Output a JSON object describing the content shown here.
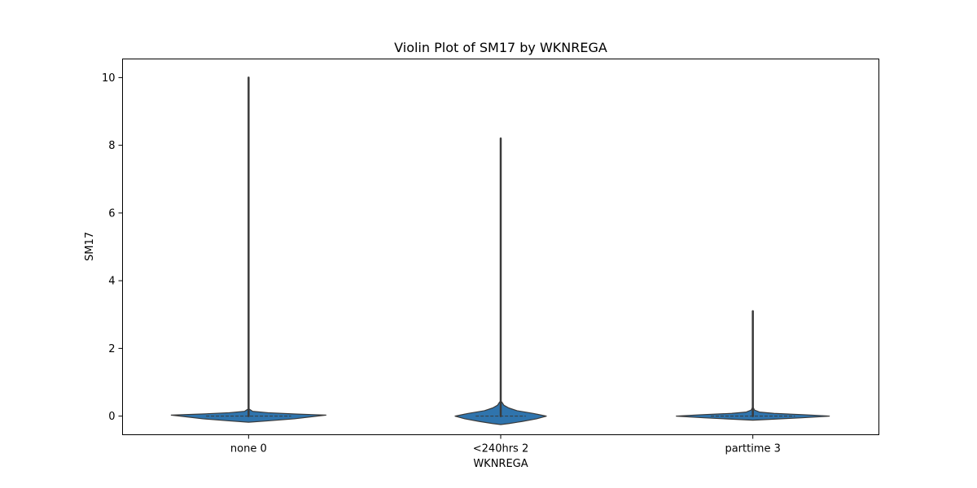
{
  "chart_data": {
    "type": "violin",
    "title": "Violin Plot of SM17 by WKNREGA",
    "xlabel": "WKNREGA",
    "ylabel": "SM17",
    "categories": [
      "none 0",
      "<240hrs 2",
      "parttime 3"
    ],
    "ylim": [
      -0.55,
      10.55
    ],
    "yticks": [
      0,
      2,
      4,
      6,
      8,
      10
    ],
    "ytick_labels": [
      "0",
      "2",
      "4",
      "6",
      "8",
      "10"
    ],
    "grid": false,
    "legend": "none",
    "colors": {
      "fill": "#2f74ad",
      "stroke": "#3a3a3a",
      "axes": "#000000"
    },
    "violins": [
      {
        "category": "none 0",
        "min": 0,
        "max": 10,
        "median": 0,
        "q1": 0,
        "q3": 0,
        "density": [
          {
            "y": -0.18,
            "w": 0.0
          },
          {
            "y": -0.14,
            "w": 0.12
          },
          {
            "y": -0.08,
            "w": 0.28
          },
          {
            "y": 0.0,
            "w": 0.42
          },
          {
            "y": 0.03,
            "w": 0.475
          },
          {
            "y": 0.06,
            "w": 0.3
          },
          {
            "y": 0.1,
            "w": 0.12
          },
          {
            "y": 0.14,
            "w": 0.025
          },
          {
            "y": 0.2,
            "w": 0.006
          }
        ]
      },
      {
        "category": "<240hrs 2",
        "min": 0,
        "max": 8.2,
        "median": 0,
        "q1": 0,
        "q3": 0,
        "density": [
          {
            "y": -0.25,
            "w": 0.0
          },
          {
            "y": -0.22,
            "w": 0.05
          },
          {
            "y": -0.16,
            "w": 0.13
          },
          {
            "y": -0.08,
            "w": 0.22
          },
          {
            "y": 0.0,
            "w": 0.28
          },
          {
            "y": 0.08,
            "w": 0.2
          },
          {
            "y": 0.16,
            "w": 0.1
          },
          {
            "y": 0.24,
            "w": 0.05
          },
          {
            "y": 0.32,
            "w": 0.02
          },
          {
            "y": 0.42,
            "w": 0.006
          }
        ]
      },
      {
        "category": "parttime 3",
        "min": 0,
        "max": 3.1,
        "median": 0,
        "q1": 0,
        "q3": 0,
        "density": [
          {
            "y": -0.12,
            "w": 0.0
          },
          {
            "y": -0.1,
            "w": 0.09
          },
          {
            "y": -0.05,
            "w": 0.3
          },
          {
            "y": 0.0,
            "w": 0.47
          },
          {
            "y": 0.04,
            "w": 0.32
          },
          {
            "y": 0.08,
            "w": 0.13
          },
          {
            "y": 0.12,
            "w": 0.04
          },
          {
            "y": 0.18,
            "w": 0.01
          },
          {
            "y": 0.24,
            "w": 0.004
          }
        ]
      }
    ]
  }
}
